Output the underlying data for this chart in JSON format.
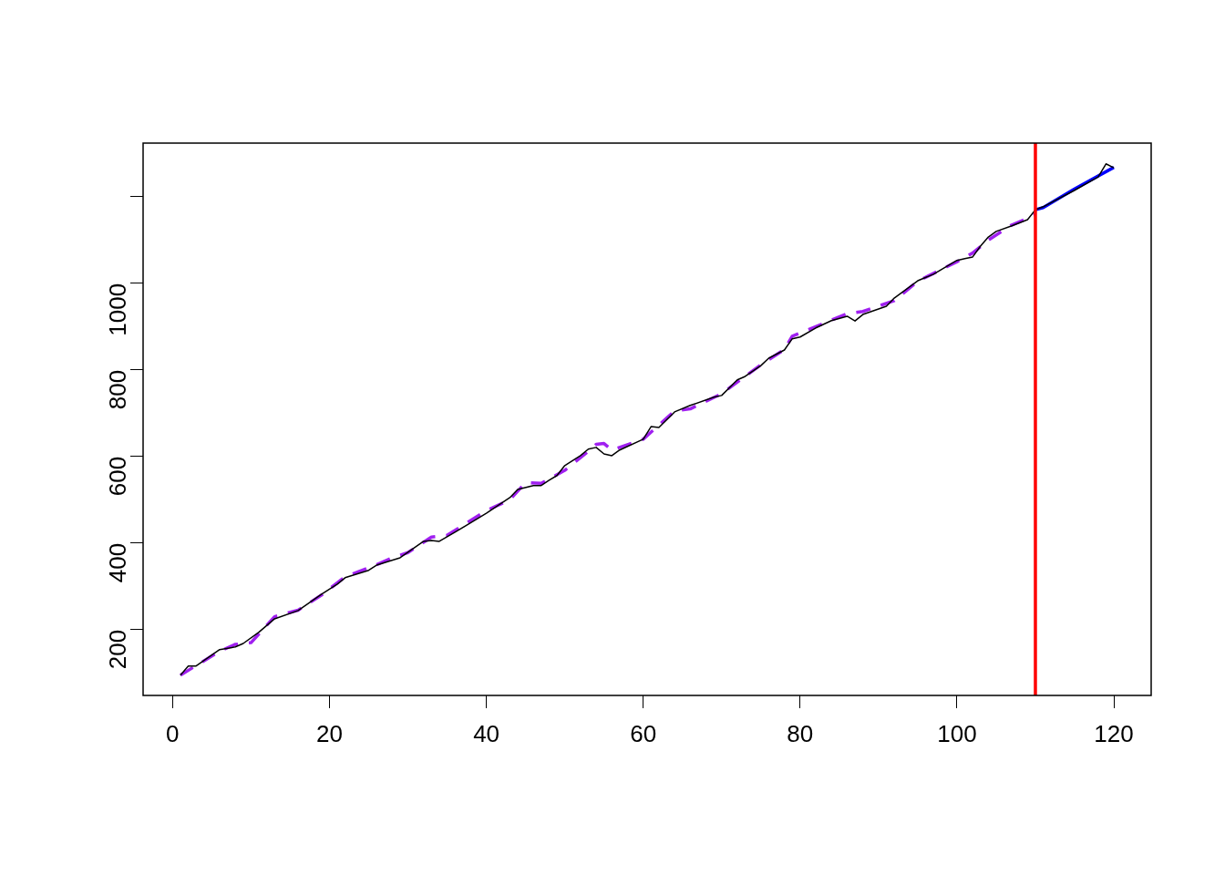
{
  "chart_data": {
    "type": "line",
    "xlim": [
      -3.76,
      124.76
    ],
    "xticks": [
      0,
      20,
      40,
      60,
      80,
      100,
      120
    ],
    "ylim": [
      48,
      1324
    ],
    "yticks": [
      200,
      400,
      600,
      800,
      1000,
      {
        "value": 1200,
        "label": null
      }
    ],
    "series": [
      {
        "color": "#000000",
        "line_style": "solid",
        "x": [
          1,
          2,
          3,
          6,
          8,
          9,
          11,
          13,
          16,
          19,
          21,
          22,
          25,
          26,
          29,
          30,
          32,
          33,
          34,
          36,
          40,
          43,
          44,
          46,
          47,
          48,
          49,
          50,
          52,
          53,
          54,
          55,
          56,
          57,
          60,
          61,
          62,
          64,
          66,
          69,
          70,
          72,
          73,
          75,
          76,
          78,
          79,
          80,
          82,
          84,
          86,
          87,
          88,
          91,
          92,
          95,
          97,
          100,
          101,
          102,
          103,
          104,
          105,
          107,
          109,
          110,
          111,
          115,
          118,
          119,
          120
        ],
        "values": [
          95,
          116,
          116,
          154,
          160,
          168,
          194,
          225,
          244,
          282,
          305,
          320,
          337,
          349,
          366,
          379,
          404,
          406,
          404,
          425,
          469,
          505,
          524,
          533,
          533,
          545,
          556,
          579,
          602,
          617,
          621,
          606,
          602,
          615,
          640,
          669,
          667,
          703,
          718,
          737,
          741,
          777,
          785,
          810,
          827,
          846,
          872,
          876,
          897,
          914,
          924,
          913,
          928,
          947,
          966,
          1006,
          1021,
          1053,
          1057,
          1061,
          1086,
          1107,
          1120,
          1133,
          1147,
          1170,
          1177,
          1215,
          1246,
          1276,
          1267
        ]
      },
      {
        "color": "#a020f0",
        "line_style": "dashed",
        "x": [
          1,
          6,
          8,
          10,
          13,
          16,
          19,
          22,
          26,
          28,
          30,
          33,
          35,
          40,
          43,
          45,
          47,
          50,
          53,
          54,
          55,
          56,
          60,
          64,
          66,
          70,
          75,
          78,
          79,
          82,
          86,
          88,
          92,
          95,
          100,
          102,
          104,
          107,
          109,
          110
        ],
        "values": [
          95,
          150,
          166,
          170,
          230,
          245,
          280,
          322,
          350,
          366,
          378,
          414,
          418,
          475,
          500,
          540,
          538,
          568,
          612,
          628,
          630,
          615,
          640,
          705,
          710,
          745,
          812,
          847,
          878,
          900,
          930,
          935,
          960,
          1005,
          1050,
          1070,
          1100,
          1135,
          1150,
          1160
        ]
      },
      {
        "color": "#0000ff",
        "line_style": "solid",
        "x": [
          110,
          111,
          115,
          120
        ],
        "values": [
          1170,
          1175,
          1218,
          1268
        ]
      }
    ],
    "ref_lines": [
      {
        "axis": "x",
        "value": 110,
        "color": "#ff0000"
      }
    ]
  }
}
